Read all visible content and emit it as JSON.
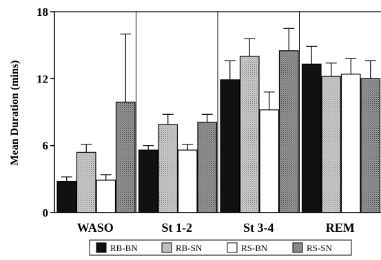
{
  "chart_data": {
    "type": "bar",
    "categories": [
      "WASO",
      "St 1-2",
      "St 3-4",
      "REM"
    ],
    "ylabel": "Mean Duration (mins)",
    "ylim": [
      0,
      18
    ],
    "yticks": [
      0,
      6,
      12,
      18
    ],
    "grid": false,
    "legend_position": "bottom",
    "error_bars": "upper",
    "series": [
      {
        "name": "RB-BN",
        "values": [
          2.8,
          5.6,
          11.9,
          13.3
        ],
        "error": [
          0.4,
          0.4,
          1.7,
          1.6
        ],
        "color": "#111111",
        "pattern": "solid-dark"
      },
      {
        "name": "RB-SN",
        "values": [
          5.4,
          7.9,
          14.0,
          12.2
        ],
        "error": [
          0.7,
          0.9,
          1.6,
          1.2
        ],
        "color": "#b4b4b4",
        "pattern": "stipple-light"
      },
      {
        "name": "RS-BN",
        "values": [
          2.9,
          5.6,
          9.2,
          12.4
        ],
        "error": [
          0.5,
          0.5,
          1.6,
          1.4
        ],
        "color": "#ffffff",
        "pattern": "open"
      },
      {
        "name": "RS-SN",
        "values": [
          9.9,
          8.1,
          14.5,
          12.0
        ],
        "error": [
          6.1,
          0.7,
          2.0,
          1.6
        ],
        "color": "#8a8a8a",
        "pattern": "stipple-dark"
      }
    ]
  }
}
